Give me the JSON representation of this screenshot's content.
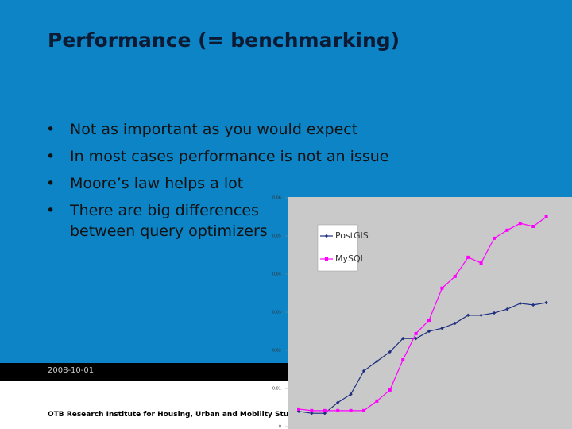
{
  "slide": {
    "title": "Performance (= benchmarking)",
    "bullets": [
      "Not as important as you would expect",
      "In most cases performance is not an issue",
      "Moore’s law helps a lot",
      "There are big differences",
      "between query optimizers"
    ],
    "date": "2008-10-01",
    "organization": "OTB Research Institute for Housing, Urban and Mobility Stu"
  },
  "chart_data": {
    "type": "line",
    "categories": [
      null,
      null,
      null,
      null,
      null,
      null,
      null,
      null,
      null,
      null,
      null,
      null,
      null,
      null,
      null,
      null,
      null,
      null,
      null,
      null
    ],
    "series": [
      {
        "name": "PostGIS",
        "color": "#1f2f80",
        "marker": "diamond",
        "values": [
          0.004,
          0.0035,
          0.0035,
          0.0063,
          0.0085,
          0.0146,
          0.0171,
          0.0196,
          0.0231,
          0.0231,
          0.025,
          0.0258,
          0.0271,
          0.0292,
          0.0292,
          0.0298,
          0.0308,
          0.0323,
          0.0319,
          0.0325
        ]
      },
      {
        "name": "MySQL",
        "color": "#ff00ff",
        "marker": "square",
        "values": [
          0.0046,
          0.0042,
          0.0042,
          0.0042,
          0.0042,
          0.0042,
          0.0067,
          0.0096,
          0.0175,
          0.0244,
          0.0279,
          0.0363,
          0.0394,
          0.0444,
          0.0429,
          0.0494,
          0.0515,
          0.0533,
          0.0525,
          0.055
        ]
      }
    ],
    "ylim": [
      0,
      0.06
    ],
    "yticks": [
      0,
      0.01,
      0.02,
      0.03,
      0.04,
      0.05,
      0.06
    ],
    "legend": "top-left"
  }
}
